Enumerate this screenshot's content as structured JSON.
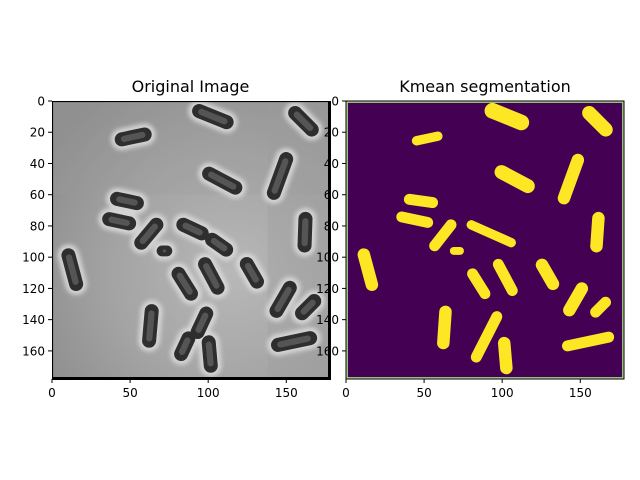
{
  "chart_data": [
    {
      "type": "image",
      "title": "Original Image",
      "xticks": [
        0,
        50,
        100,
        150
      ],
      "yticks": [
        0,
        20,
        40,
        60,
        80,
        100,
        120,
        140,
        160
      ],
      "xlim": [
        0,
        178
      ],
      "ylim": [
        178,
        0
      ],
      "colormap": "gray",
      "content": "phase-contrast microscopy image of rod-shaped bacteria",
      "cells": [
        {
          "x": 52,
          "y": 23,
          "len": 24,
          "w": 9,
          "ang": -12
        },
        {
          "x": 103,
          "y": 10,
          "len": 28,
          "w": 9,
          "ang": 22
        },
        {
          "x": 161,
          "y": 13,
          "len": 24,
          "w": 9,
          "ang": 45
        },
        {
          "x": 109,
          "y": 51,
          "len": 28,
          "w": 9,
          "ang": 28
        },
        {
          "x": 146,
          "y": 48,
          "len": 32,
          "w": 9,
          "ang": -70
        },
        {
          "x": 48,
          "y": 64,
          "len": 22,
          "w": 9,
          "ang": 12
        },
        {
          "x": 43,
          "y": 77,
          "len": 22,
          "w": 9,
          "ang": 12
        },
        {
          "x": 62,
          "y": 85,
          "len": 24,
          "w": 9,
          "ang": -50
        },
        {
          "x": 90,
          "y": 82,
          "len": 22,
          "w": 9,
          "ang": 25
        },
        {
          "x": 107,
          "y": 92,
          "len": 20,
          "w": 9,
          "ang": 35
        },
        {
          "x": 72,
          "y": 96,
          "len": 10,
          "w": 7,
          "ang": 0
        },
        {
          "x": 162,
          "y": 84,
          "len": 26,
          "w": 9,
          "ang": -88
        },
        {
          "x": 13,
          "y": 108,
          "len": 28,
          "w": 9,
          "ang": 75
        },
        {
          "x": 85,
          "y": 117,
          "len": 24,
          "w": 9,
          "ang": 58
        },
        {
          "x": 102,
          "y": 112,
          "len": 26,
          "w": 9,
          "ang": 62
        },
        {
          "x": 128,
          "y": 110,
          "len": 22,
          "w": 9,
          "ang": 60
        },
        {
          "x": 148,
          "y": 127,
          "len": 26,
          "w": 9,
          "ang": -60
        },
        {
          "x": 164,
          "y": 132,
          "len": 20,
          "w": 9,
          "ang": -45
        },
        {
          "x": 63,
          "y": 144,
          "len": 28,
          "w": 9,
          "ang": -85
        },
        {
          "x": 96,
          "y": 142,
          "len": 22,
          "w": 9,
          "ang": -65
        },
        {
          "x": 85,
          "y": 157,
          "len": 20,
          "w": 9,
          "ang": -65
        },
        {
          "x": 101,
          "y": 162,
          "len": 24,
          "w": 9,
          "ang": 85
        },
        {
          "x": 155,
          "y": 154,
          "len": 30,
          "w": 9,
          "ang": -12
        }
      ]
    },
    {
      "type": "image",
      "title": "Kmean segmentation",
      "xticks": [
        0,
        50,
        100,
        150
      ],
      "yticks": [
        0,
        20,
        40,
        60,
        80,
        100,
        120,
        140,
        160
      ],
      "xlim": [
        0,
        178
      ],
      "ylim": [
        178,
        0
      ],
      "colormap": "viridis",
      "colors": {
        "background": "#440154",
        "segments": "#fde725",
        "border": "#a8d88a"
      },
      "segments": [
        {
          "x": 52,
          "y": 24,
          "len": 20,
          "w": 6,
          "ang": -12
        },
        {
          "x": 103,
          "y": 10,
          "len": 30,
          "w": 10,
          "ang": 22
        },
        {
          "x": 161,
          "y": 13,
          "len": 24,
          "w": 9,
          "ang": 45
        },
        {
          "x": 108,
          "y": 50,
          "len": 28,
          "w": 9,
          "ang": 28
        },
        {
          "x": 144,
          "y": 50,
          "len": 34,
          "w": 8,
          "ang": -70
        },
        {
          "x": 48,
          "y": 64,
          "len": 22,
          "w": 7,
          "ang": 8
        },
        {
          "x": 44,
          "y": 76,
          "len": 24,
          "w": 7,
          "ang": 12
        },
        {
          "x": 62,
          "y": 86,
          "len": 24,
          "w": 7,
          "ang": -52
        },
        {
          "x": 93,
          "y": 85,
          "len": 34,
          "w": 6,
          "ang": 24
        },
        {
          "x": 71,
          "y": 96,
          "len": 9,
          "w": 5,
          "ang": 0
        },
        {
          "x": 161,
          "y": 84,
          "len": 26,
          "w": 8,
          "ang": -86
        },
        {
          "x": 14,
          "y": 108,
          "len": 28,
          "w": 8,
          "ang": 75
        },
        {
          "x": 85,
          "y": 117,
          "len": 22,
          "w": 7,
          "ang": 58
        },
        {
          "x": 102,
          "y": 113,
          "len": 26,
          "w": 7,
          "ang": 62
        },
        {
          "x": 129,
          "y": 111,
          "len": 22,
          "w": 8,
          "ang": 60
        },
        {
          "x": 147,
          "y": 127,
          "len": 24,
          "w": 8,
          "ang": -60
        },
        {
          "x": 163,
          "y": 132,
          "len": 16,
          "w": 7,
          "ang": -45
        },
        {
          "x": 63,
          "y": 145,
          "len": 28,
          "w": 8,
          "ang": -86
        },
        {
          "x": 90,
          "y": 151,
          "len": 36,
          "w": 7,
          "ang": -63
        },
        {
          "x": 102,
          "y": 163,
          "len": 24,
          "w": 8,
          "ang": 85
        },
        {
          "x": 155,
          "y": 154,
          "len": 34,
          "w": 7,
          "ang": -12
        }
      ]
    }
  ]
}
